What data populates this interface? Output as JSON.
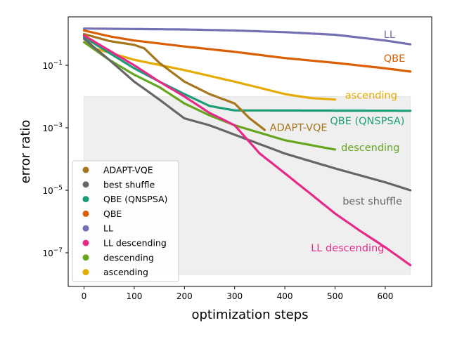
{
  "chart_data": {
    "type": "line",
    "title": "",
    "xlabel": "optimization steps",
    "ylabel": "error ratio",
    "xlim": [
      -30,
      680
    ],
    "ylim_log10": [
      -7.9,
      0.6
    ],
    "yscale": "log",
    "x_ticks": [
      0,
      100,
      200,
      300,
      400,
      500,
      600
    ],
    "x_tick_labels": [
      "0",
      "100",
      "200",
      "300",
      "400",
      "500",
      "600"
    ],
    "y_ticks_log10": [
      -1,
      -3,
      -5,
      -7
    ],
    "y_tick_labels": [
      {
        "base": "10",
        "exp": "−1"
      },
      {
        "base": "10",
        "exp": "−3"
      },
      {
        "base": "10",
        "exp": "−5"
      },
      {
        "base": "10",
        "exp": "−7"
      }
    ],
    "grid": false,
    "shaded_region": {
      "x": [
        0,
        650
      ],
      "y": [
        2e-08,
        0.01
      ],
      "color": "#efefef"
    },
    "legend": {
      "placement": "lower-left",
      "marker": "circle"
    },
    "series": [
      {
        "name": "ADAPT-VQE",
        "color": "#a6761d",
        "annotation": "ADAPT-VQE",
        "x": [
          0,
          50,
          100,
          120,
          150,
          200,
          250,
          300,
          330,
          360
        ],
        "y": [
          1.0,
          0.6,
          0.45,
          0.35,
          0.12,
          0.03,
          0.012,
          0.006,
          0.002,
          0.00085
        ]
      },
      {
        "name": "best shuffle",
        "color": "#666666",
        "annotation": "best shuffle",
        "x": [
          0,
          50,
          100,
          150,
          200,
          250,
          300,
          400,
          500,
          600,
          650
        ],
        "y": [
          0.7,
          0.15,
          0.03,
          0.008,
          0.002,
          0.0012,
          0.0006,
          0.00015,
          5e-05,
          1.8e-05,
          1e-05
        ]
      },
      {
        "name": "QBE (QNSPSA)",
        "color": "#1b9e77",
        "annotation": "QBE (QNSPSA)",
        "x": [
          0,
          50,
          100,
          150,
          200,
          250,
          300,
          650
        ],
        "y": [
          0.8,
          0.25,
          0.08,
          0.03,
          0.012,
          0.005,
          0.0036,
          0.0035
        ]
      },
      {
        "name": "QBE",
        "color": "#d95f02",
        "annotation": "QBE",
        "x": [
          0,
          50,
          100,
          200,
          300,
          400,
          500,
          600,
          650
        ],
        "y": [
          1.3,
          0.85,
          0.62,
          0.4,
          0.27,
          0.17,
          0.12,
          0.08,
          0.063
        ]
      },
      {
        "name": "LL",
        "color": "#7570b3",
        "annotation": "LL",
        "x": [
          0,
          200,
          300,
          400,
          500,
          600,
          650
        ],
        "y": [
          1.5,
          1.4,
          1.3,
          1.15,
          0.95,
          0.62,
          0.47
        ]
      },
      {
        "name": "LL descending",
        "color": "#e7298a",
        "annotation": "LL descending",
        "x": [
          0,
          50,
          100,
          150,
          200,
          250,
          300,
          350,
          400,
          450,
          500,
          550,
          600,
          650
        ],
        "y": [
          0.9,
          0.3,
          0.1,
          0.03,
          0.01,
          0.003,
          0.0012,
          0.00015,
          3.5e-05,
          8e-06,
          1.8e-06,
          5e-07,
          1.5e-07,
          4e-08
        ]
      },
      {
        "name": "descending",
        "color": "#66a61e",
        "annotation": "descending",
        "x": [
          0,
          50,
          100,
          150,
          200,
          250,
          300,
          400,
          500
        ],
        "y": [
          0.55,
          0.15,
          0.05,
          0.02,
          0.006,
          0.0025,
          0.0012,
          0.0004,
          0.0002
        ]
      },
      {
        "name": "ascending",
        "color": "#e6ab02",
        "annotation": "ascending",
        "x": [
          0,
          20,
          100,
          200,
          300,
          400,
          450,
          500
        ],
        "y": [
          0.9,
          0.35,
          0.15,
          0.07,
          0.03,
          0.012,
          0.009,
          0.008
        ]
      }
    ],
    "annotations": [
      {
        "text": "LL",
        "series": "LL",
        "x": 597,
        "y": 0.75
      },
      {
        "text": "QBE",
        "series": "QBE",
        "x": 597,
        "y": 0.13
      },
      {
        "text": "ascending",
        "series": "ascending",
        "x": 520,
        "y": 0.0085
      },
      {
        "text": "QBE (QNSPSA)",
        "series": "QBE (QNSPSA)",
        "x": 490,
        "y": 0.0013
      },
      {
        "text": "ADAPT-VQE",
        "series": "ADAPT-VQE",
        "x": 370,
        "y": 0.0008
      },
      {
        "text": "descending",
        "series": "descending",
        "x": 512,
        "y": 0.00018
      },
      {
        "text": "best shuffle",
        "series": "best shuffle",
        "x": 515,
        "y": 3.5e-06
      },
      {
        "text": "LL descending",
        "series": "LL descending",
        "x": 452,
        "y": 1.1e-07
      }
    ]
  }
}
